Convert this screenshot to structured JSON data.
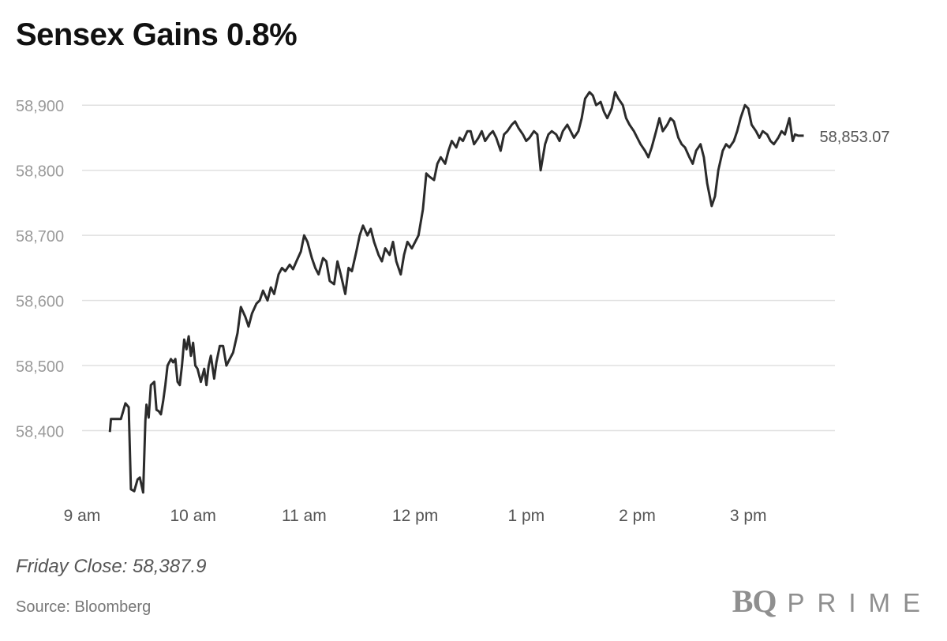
{
  "title": "Sensex Gains 0.8%",
  "note": "Friday Close: 58,387.9",
  "source": "Source: Bloomberg",
  "logo": {
    "mark": "BQ",
    "word": "PRIME"
  },
  "colors": {
    "line": "#2b2b2b",
    "grid": "#e0e0e0",
    "axis_text": "#9a9a9a",
    "end_label": "#555555"
  },
  "chart_data": {
    "type": "line",
    "title": "Sensex Gains 0.8%",
    "xlabel": "",
    "ylabel": "",
    "ylim": [
      58300,
      58950
    ],
    "xlim": [
      9.0,
      15.55
    ],
    "y_ticks": [
      {
        "value": 58400,
        "label": "58,400"
      },
      {
        "value": 58500,
        "label": "58,500"
      },
      {
        "value": 58600,
        "label": "58,600"
      },
      {
        "value": 58700,
        "label": "58,700"
      },
      {
        "value": 58800,
        "label": "58,800"
      },
      {
        "value": 58900,
        "label": "58,900"
      }
    ],
    "x_ticks": [
      {
        "value": 9,
        "label": "9 am"
      },
      {
        "value": 10,
        "label": "10 am"
      },
      {
        "value": 11,
        "label": "11 am"
      },
      {
        "value": 12,
        "label": "12 pm"
      },
      {
        "value": 13,
        "label": "1 pm"
      },
      {
        "value": 14,
        "label": "2 pm"
      },
      {
        "value": 15,
        "label": "3 pm"
      }
    ],
    "grid": true,
    "end_label": "58,853.07",
    "series": [
      {
        "name": "Sensex",
        "x": [
          9.25,
          9.26,
          9.3,
          9.35,
          9.37,
          9.39,
          9.42,
          9.44,
          9.47,
          9.5,
          9.52,
          9.55,
          9.57,
          9.58,
          9.6,
          9.62,
          9.65,
          9.67,
          9.69,
          9.71,
          9.73,
          9.75,
          9.77,
          9.8,
          9.82,
          9.84,
          9.86,
          9.88,
          9.9,
          9.92,
          9.94,
          9.96,
          9.98,
          10.0,
          10.02,
          10.04,
          10.07,
          10.1,
          10.12,
          10.14,
          10.16,
          10.19,
          10.21,
          10.24,
          10.27,
          10.3,
          10.33,
          10.36,
          10.4,
          10.43,
          10.47,
          10.5,
          10.53,
          10.57,
          10.6,
          10.63,
          10.67,
          10.7,
          10.73,
          10.77,
          10.8,
          10.83,
          10.87,
          10.9,
          10.93,
          10.97,
          11.0,
          11.03,
          11.07,
          11.1,
          11.13,
          11.17,
          11.2,
          11.23,
          11.27,
          11.3,
          11.33,
          11.37,
          11.4,
          11.43,
          11.47,
          11.5,
          11.53,
          11.57,
          11.6,
          11.63,
          11.67,
          11.7,
          11.73,
          11.77,
          11.8,
          11.83,
          11.87,
          11.9,
          11.93,
          11.97,
          12.0,
          12.03,
          12.07,
          12.1,
          12.13,
          12.17,
          12.2,
          12.23,
          12.27,
          12.3,
          12.33,
          12.37,
          12.4,
          12.43,
          12.47,
          12.5,
          12.53,
          12.57,
          12.6,
          12.63,
          12.67,
          12.7,
          12.73,
          12.77,
          12.8,
          12.83,
          12.87,
          12.9,
          12.93,
          12.97,
          13.0,
          13.03,
          13.07,
          13.1,
          13.13,
          13.17,
          13.2,
          13.23,
          13.27,
          13.3,
          13.33,
          13.37,
          13.4,
          13.43,
          13.47,
          13.5,
          13.53,
          13.57,
          13.6,
          13.63,
          13.67,
          13.7,
          13.73,
          13.77,
          13.8,
          13.83,
          13.87,
          13.9,
          13.93,
          13.97,
          14.0,
          14.03,
          14.07,
          14.1,
          14.13,
          14.17,
          14.2,
          14.23,
          14.27,
          14.3,
          14.33,
          14.37,
          14.4,
          14.43,
          14.47,
          14.5,
          14.53,
          14.57,
          14.6,
          14.63,
          14.67,
          14.7,
          14.73,
          14.77,
          14.8,
          14.83,
          14.87,
          14.9,
          14.93,
          14.97,
          15.0,
          15.03,
          15.07,
          15.1,
          15.13,
          15.17,
          15.2,
          15.23,
          15.27,
          15.3,
          15.33,
          15.37,
          15.4,
          15.42,
          15.45,
          15.5
        ],
        "values": [
          58398,
          58418,
          58418,
          58418,
          58430,
          58442,
          58436,
          58310,
          58307,
          58325,
          58328,
          58305,
          58415,
          58440,
          58420,
          58470,
          58475,
          58432,
          58430,
          58425,
          58445,
          58470,
          58500,
          58510,
          58505,
          58510,
          58475,
          58470,
          58500,
          58540,
          58525,
          58545,
          58515,
          58535,
          58500,
          58495,
          58475,
          58495,
          58470,
          58500,
          58515,
          58480,
          58505,
          58530,
          58530,
          58500,
          58510,
          58520,
          58550,
          58590,
          58575,
          58560,
          58580,
          58595,
          58600,
          58615,
          58600,
          58620,
          58610,
          58640,
          58650,
          58645,
          58655,
          58648,
          58660,
          58675,
          58700,
          58690,
          58665,
          58650,
          58640,
          58665,
          58660,
          58630,
          58625,
          58660,
          58640,
          58610,
          58650,
          58645,
          58675,
          58700,
          58715,
          58700,
          58710,
          58690,
          58670,
          58660,
          58680,
          58670,
          58690,
          58660,
          58640,
          58670,
          58690,
          58680,
          58690,
          58700,
          58740,
          58795,
          58790,
          58785,
          58810,
          58820,
          58810,
          58830,
          58845,
          58835,
          58850,
          58845,
          58860,
          58860,
          58840,
          58850,
          58860,
          58845,
          58855,
          58860,
          58850,
          58830,
          58855,
          58860,
          58870,
          58875,
          58865,
          58855,
          58845,
          58850,
          58860,
          58855,
          58800,
          58840,
          58855,
          58860,
          58855,
          58845,
          58860,
          58870,
          58860,
          58850,
          58860,
          58880,
          58910,
          58920,
          58915,
          58900,
          58905,
          58890,
          58880,
          58895,
          58920,
          58910,
          58900,
          58880,
          58870,
          58860,
          58850,
          58840,
          58830,
          58820,
          58835,
          58860,
          58880,
          58860,
          58870,
          58880,
          58875,
          58850,
          58840,
          58835,
          58820,
          58810,
          58830,
          58840,
          58820,
          58780,
          58745,
          58760,
          58800,
          58830,
          58840,
          58835,
          58845,
          58860,
          58880,
          58900,
          58895,
          58870,
          58860,
          58850,
          58860,
          58855,
          58845,
          58840,
          58850,
          58860,
          58855,
          58880,
          58845,
          58855,
          58853.07,
          58853.07
        ]
      }
    ]
  }
}
